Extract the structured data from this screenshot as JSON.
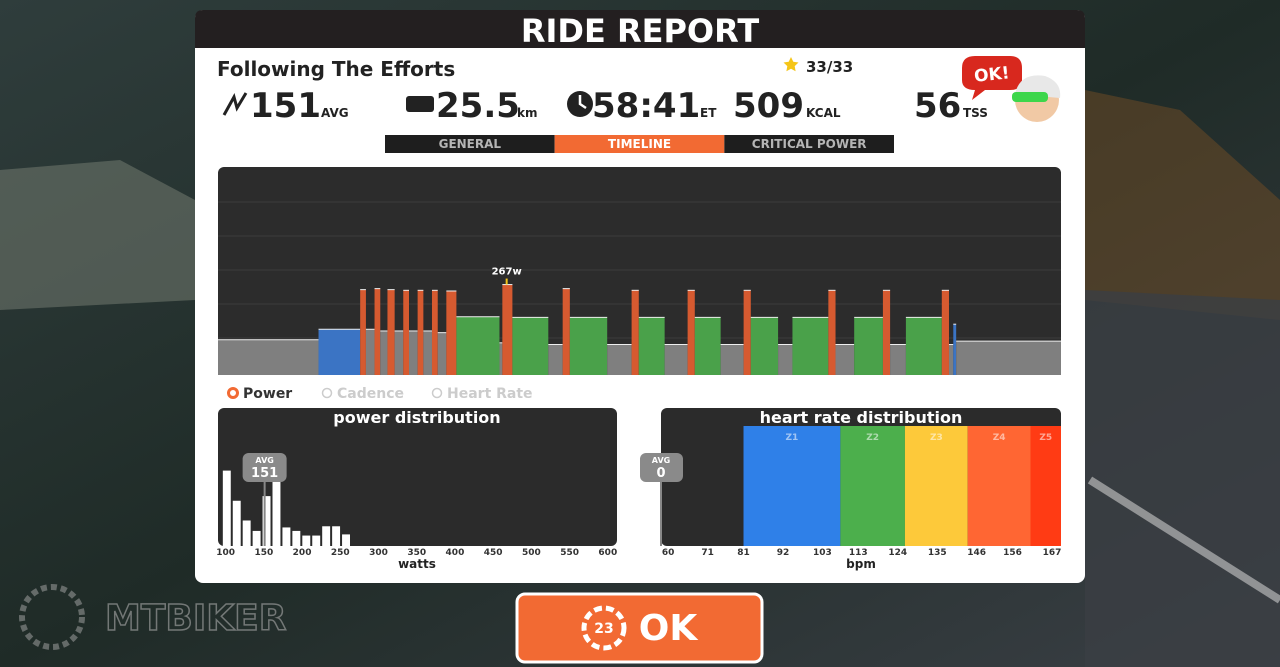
{
  "header": {
    "title": "RIDE REPORT"
  },
  "workout": {
    "name": "Following The Efforts",
    "stars": "33/33"
  },
  "stats": [
    {
      "value": "151",
      "unit": "AVG"
    },
    {
      "value": "25.5",
      "unit": "km"
    },
    {
      "value": "58:41",
      "unit": "ET"
    },
    {
      "value": "509",
      "unit": "KCAL"
    },
    {
      "value": "56",
      "unit": "TSS"
    }
  ],
  "badge": "OK!",
  "tabs": {
    "items": [
      "GENERAL",
      "TIMELINE",
      "CRITICAL POWER"
    ],
    "active": 1
  },
  "timeline": {
    "xlim": [
      0,
      58.7
    ],
    "ylim": [
      0,
      614
    ],
    "peak": {
      "label": "267w",
      "t": 20.1,
      "watts": 267
    },
    "segments": [
      [
        0,
        7.0,
        104,
        "#7f7f7f"
      ],
      [
        7.0,
        9.9,
        135,
        "#3b74c4"
      ],
      [
        9.9,
        10.3,
        252,
        "#d65a30"
      ],
      [
        10.3,
        10.9,
        135,
        "#7f7f7f"
      ],
      [
        10.9,
        11.3,
        255,
        "#d65a30"
      ],
      [
        11.3,
        11.8,
        130,
        "#7f7f7f"
      ],
      [
        11.8,
        12.3,
        252,
        "#d65a30"
      ],
      [
        12.3,
        12.9,
        130,
        "#7f7f7f"
      ],
      [
        12.9,
        13.3,
        250,
        "#d65a30"
      ],
      [
        13.3,
        13.9,
        130,
        "#7f7f7f"
      ],
      [
        13.9,
        14.3,
        250,
        "#d65a30"
      ],
      [
        14.3,
        14.9,
        130,
        "#7f7f7f"
      ],
      [
        14.9,
        15.3,
        250,
        "#d65a30"
      ],
      [
        15.3,
        15.9,
        125,
        "#7f7f7f"
      ],
      [
        15.9,
        16.6,
        248,
        "#d65a30"
      ],
      [
        16.6,
        19.6,
        172,
        "#4aa14a"
      ],
      [
        19.6,
        19.8,
        95,
        "#7f7f7f"
      ],
      [
        19.8,
        20.5,
        267,
        "#d65a30"
      ],
      [
        20.5,
        23.0,
        170,
        "#4aa14a"
      ],
      [
        23.0,
        24.0,
        90,
        "#7f7f7f"
      ],
      [
        24.0,
        24.5,
        255,
        "#d65a30"
      ],
      [
        24.5,
        27.1,
        170,
        "#4aa14a"
      ],
      [
        27.1,
        28.8,
        90,
        "#7f7f7f"
      ],
      [
        28.8,
        29.3,
        250,
        "#d65a30"
      ],
      [
        29.3,
        31.1,
        170,
        "#4aa14a"
      ],
      [
        31.1,
        32.7,
        90,
        "#7f7f7f"
      ],
      [
        32.7,
        33.2,
        250,
        "#d65a30"
      ],
      [
        33.2,
        35.0,
        170,
        "#4aa14a"
      ],
      [
        35.0,
        36.6,
        90,
        "#7f7f7f"
      ],
      [
        36.6,
        37.1,
        250,
        "#d65a30"
      ],
      [
        37.1,
        39.0,
        170,
        "#4aa14a"
      ],
      [
        39.0,
        40.0,
        90,
        "#7f7f7f"
      ],
      [
        40.0,
        42.5,
        170,
        "#4aa14a"
      ],
      [
        42.5,
        43.0,
        250,
        "#d65a30"
      ],
      [
        43.0,
        44.3,
        90,
        "#7f7f7f"
      ],
      [
        44.3,
        46.3,
        170,
        "#4aa14a"
      ],
      [
        46.3,
        46.8,
        250,
        "#d65a30"
      ],
      [
        46.8,
        47.9,
        90,
        "#7f7f7f"
      ],
      [
        47.9,
        50.4,
        170,
        "#4aa14a"
      ],
      [
        50.4,
        50.9,
        250,
        "#d65a30"
      ],
      [
        50.9,
        51.2,
        90,
        "#7f7f7f"
      ],
      [
        51.2,
        51.4,
        150,
        "#3b74c4"
      ],
      [
        51.4,
        58.7,
        100,
        "#7f7f7f"
      ]
    ]
  },
  "legend": [
    {
      "label": "Power",
      "active": true
    },
    {
      "label": "Cadence",
      "active": false
    },
    {
      "label": "Heart Rate",
      "active": false
    }
  ],
  "power_distribution": {
    "title": "power distribution",
    "xlabel": "watts",
    "xlim": [
      90,
      612
    ],
    "xticks": [
      100,
      150,
      200,
      250,
      300,
      350,
      400,
      450,
      500,
      550,
      600
    ],
    "bins": [
      95,
      108,
      121,
      134,
      147,
      160,
      173,
      186,
      199,
      212,
      225,
      238,
      251,
      264
    ],
    "values": [
      65,
      39,
      22,
      13,
      43,
      62,
      16,
      13,
      9,
      9,
      17,
      17,
      10
    ],
    "ylim": [
      0,
      100
    ],
    "avg": {
      "label": "AVG",
      "value": 151
    }
  },
  "hr_distribution": {
    "title": "heart rate distribution",
    "xlabel": "bpm",
    "xlim": [
      58,
      169.5
    ],
    "xticks": [
      60,
      71,
      81,
      92,
      103,
      113,
      124,
      135,
      146,
      156,
      167
    ],
    "zones": [
      {
        "name": "Z1",
        "start": 81,
        "end": 108,
        "color": "#2f80e8"
      },
      {
        "name": "Z2",
        "start": 108,
        "end": 126,
        "color": "#4caf4c"
      },
      {
        "name": "Z3",
        "start": 126,
        "end": 143.5,
        "color": "#fdc93a"
      },
      {
        "name": "Z4",
        "start": 143.5,
        "end": 161,
        "color": "#ff6633"
      },
      {
        "name": "Z5",
        "start": 161,
        "end": 169.5,
        "color": "#ff3b14"
      }
    ],
    "avg": {
      "label": "AVG",
      "value": "0"
    }
  },
  "button": {
    "label": "OK",
    "badge": "23"
  },
  "watermark": "MTBIKER"
}
